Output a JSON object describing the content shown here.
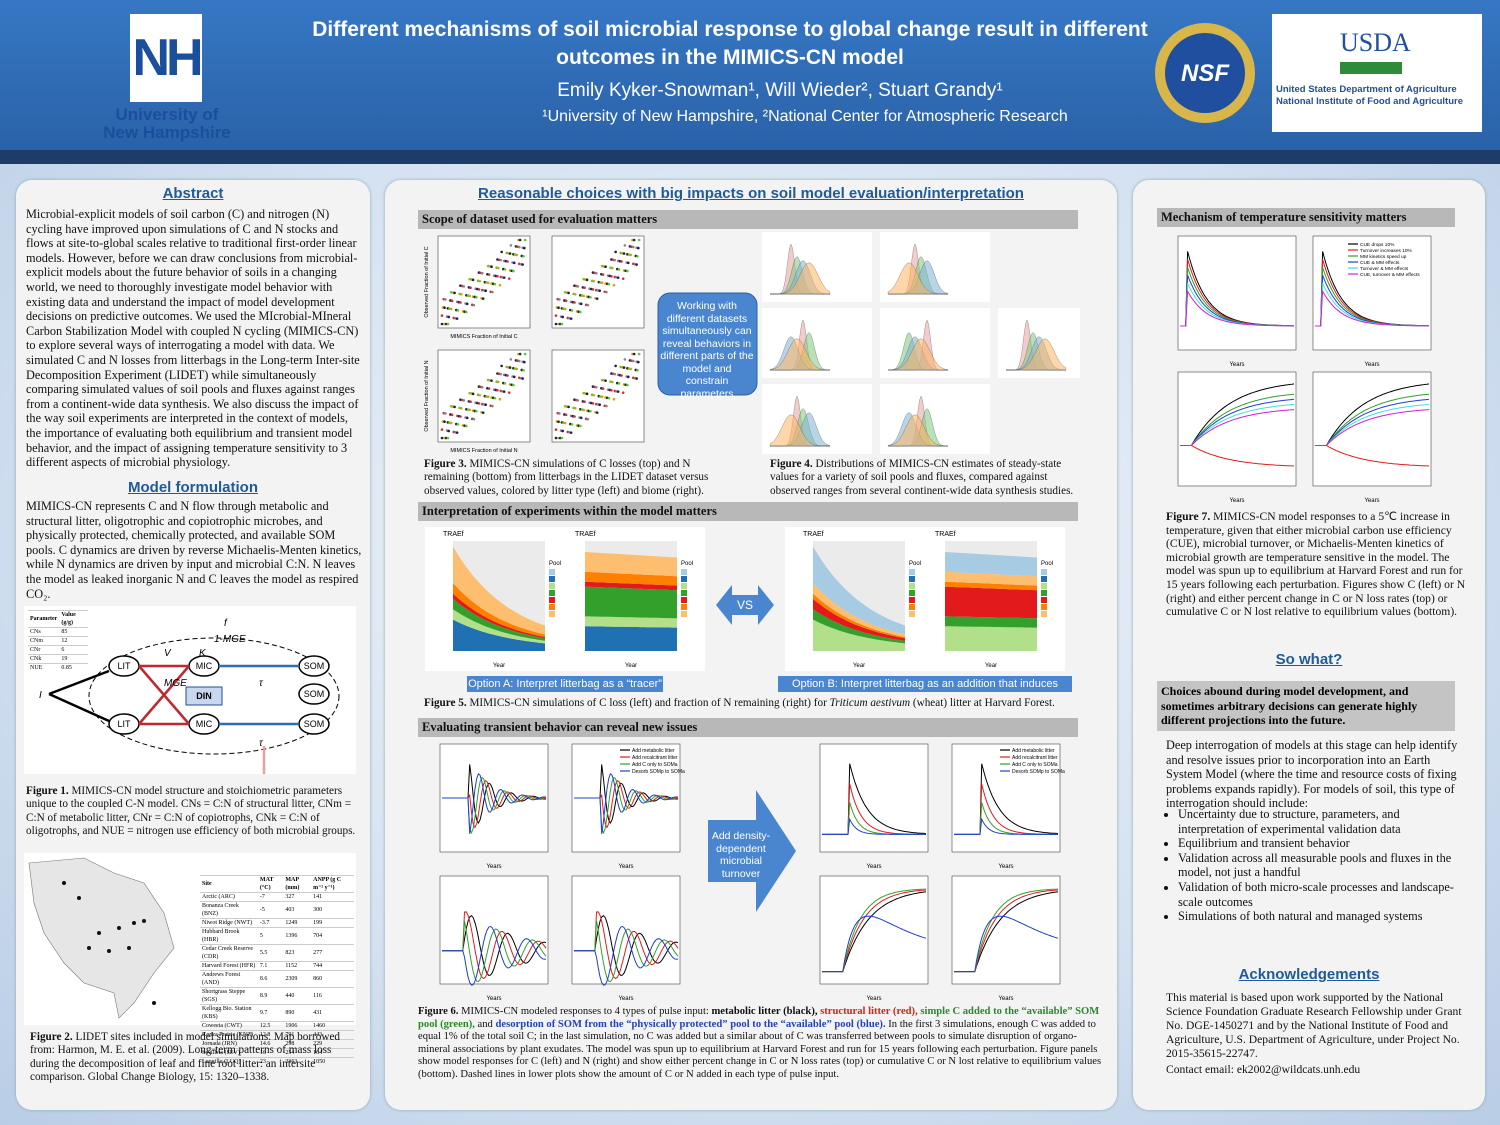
{
  "header": {
    "title": "Different mechanisms of soil microbial response to global change result in different outcomes in the MIMICS-CN model",
    "authors": "Emily Kyker-Snowman¹, Will Wieder², Stuart Grandy¹",
    "affiliations": "¹University of New Hampshire, ²National Center for Atmospheric Research",
    "unh_logo": "NH",
    "unh_name": [
      "University of",
      "New Hampshire"
    ],
    "nsf_logo": "NSF",
    "usda_logo": "USDA",
    "usda_name": [
      "United States Department of Agriculture",
      "National Institute of Food and Agriculture"
    ]
  },
  "left": {
    "abstract_heading": "Abstract",
    "abstract": "Microbial-explicit models of soil carbon (C) and nitrogen (N) cycling have improved upon simulations of C and N stocks and flows at site-to-global scales relative to traditional first-order linear models. However, before we can draw conclusions from microbial-explicit models about the future behavior of soils in a changing world, we need to thoroughly investigate model behavior with existing data and understand the impact of model development decisions on predictive outcomes. We used the MIcrobial-MIneral Carbon Stabilization Model with coupled N cycling (MIMICS-CN) to explore several ways of interrogating a model with data. We simulated C and N losses from litterbags in the Long-term Inter-site Decomposition Experiment (LIDET) while simultaneously comparing simulated values of soil pools and fluxes against ranges from a continent-wide data synthesis. We also discuss the impact of the way soil experiments are interpreted in the context of models, the importance of evaluating both equilibrium and transient model behavior, and the impact of assigning temperature sensitivity to 3 different aspects of microbial physiology.",
    "model_heading": "Model formulation",
    "model_text": "MIMICS-CN represents C and N flow through metabolic and structural litter, oligotrophic and copiotrophic microbes, and physically protected, chemically protected, and available SOM pools. C dynamics are driven by reverse Michaelis-Menten kinetics, while N dynamics are driven by input and microbial C:N. N leaves the model as leaked inorganic N and C leaves the model as respired CO₂.",
    "param_table": {
      "header": [
        "Parameter",
        "Value (g/g)"
      ],
      "rows": [
        [
          "CNs",
          "85"
        ],
        [
          "CNm",
          "12"
        ],
        [
          "CNr",
          "6"
        ],
        [
          "CNk",
          "19"
        ],
        [
          "NUE",
          "0.85"
        ]
      ]
    },
    "diagram": {
      "nodes": [
        "LIT",
        "LIT",
        "MIC",
        "MIC",
        "DIN",
        "SOM",
        "SOM",
        "SOM"
      ],
      "labels": [
        "f",
        "1-MGE",
        "MGE",
        "V",
        "K",
        "τ",
        "τ",
        "I"
      ]
    },
    "figure1_label": "Figure 1.",
    "figure1_caption": " MIMICS-CN model structure and stoichiometric parameters unique to the coupled C-N model. CNs = C:N of structural litter, CNm = C:N of metabolic litter, CNr = C:N of copiotrophs, CNk = C:N of oligotrophs, and NUE = nitrogen use efficiency of both microbial groups.",
    "site_table": {
      "header": [
        "Site",
        "MAT (°C)",
        "MAP (mm)",
        "ANPP (g C m⁻² y⁻¹)"
      ],
      "rows": [
        [
          "Arctic (ARC)",
          "-7",
          "327",
          "141"
        ],
        [
          "Bonanza Creek (BNZ)",
          "-5",
          "403",
          "300"
        ],
        [
          "Niwot Ridge (NWT)",
          "-3.7",
          "1249",
          "199"
        ],
        [
          "Hubbard Brook (HBR)",
          "5",
          "1396",
          "704"
        ],
        [
          "Cedar Creek Reserve (CDR)",
          "5.5",
          "823",
          "277"
        ],
        [
          "Harvard Forest (HFR)",
          "7.1",
          "1152",
          "744"
        ],
        [
          "Andrews Forest (AND)",
          "8.6",
          "2309",
          "860"
        ],
        [
          "Shortgrass Steppe (SGS)",
          "8.9",
          "440",
          "116"
        ],
        [
          "Kellogg Bio. Station (KBS)",
          "9.7",
          "890",
          "431"
        ],
        [
          "Coweeta (CWT)",
          "12.5",
          "1906",
          "1460"
        ],
        [
          "Konza Prairie (KNZ)",
          "12.8",
          "791",
          "443"
        ],
        [
          "Jornada (JRN)",
          "14.6",
          "298",
          "229"
        ],
        [
          "Sevilleta (SEV)",
          "16",
          "254",
          "164"
        ],
        [
          "Luquillo (LUQ)",
          "23",
          "3363",
          "1050"
        ]
      ]
    },
    "figure2_label": "Figure 2.",
    "figure2_caption": " LIDET sites included in model simulations. Map borrowed from: Harmon, M. E. et al. (2009). Long-term patterns of mass loss during the decomposition of leaf and fine root litter: an intersite comparison. Global Change Biology, 15: 1320–1338."
  },
  "middle": {
    "heading": "Reasonable choices with big impacts on soil model evaluation/interpretation",
    "section1": "Scope of dataset used for evaluation matters",
    "fig3_axes": [
      "MIMICS Fraction of Initial C",
      "Observed Fraction of Initial C",
      "MIMICS Fraction of Initial N",
      "Observed Fraction of Initial N"
    ],
    "arrow1": "Working with different datasets simultaneously can reveal behaviors in different parts of the model and constrain parameters",
    "figure3_label": "Figure 3.",
    "figure3_caption": " MIMICS-CN simulations of C losses (top) and N remaining (bottom) from litterbags in the LIDET dataset versus observed values, colored by litter type (left) and biome (right).",
    "figure4_label": "Figure 4.",
    "figure4_caption": " Distributions of MIMICS-CN estimates of steady-state values for a variety of soil pools and fluxes, compared against observed ranges from several continent-wide data synthesis studies.",
    "section2": "Interpretation of experiments within the model matters",
    "fig5_panel": "TRAEf",
    "fig5_legend_title": "Pool",
    "fig5_axis_x": "Year",
    "vs": "VS",
    "option_a": "Option A: Interpret litterbag as a “tracer”",
    "option_b": "Option B: Interpret litterbag as an addition that induces feedbacks",
    "figure5_label": "Figure 5.",
    "figure5_caption_a": " MIMICS-CN simulations of C loss (left) and fraction of N remaining (right) for ",
    "figure5_species": "Triticum aestivum",
    "figure5_caption_b": " (wheat) litter at Harvard Forest.",
    "section3": "Evaluating transient behavior can reveal new issues",
    "fig6_legend": [
      "Add metabolic litter",
      "Add recalcitrant litter",
      "Add C only to SOMa",
      "Desorb SOMp to SOMa"
    ],
    "fig6_axis_x": "Years",
    "arrow2": "Add density-dependent microbial turnover",
    "figure6_label": "Figure 6.",
    "figure6_intro": " MIMICS-CN modeled responses to 4 types of pulse input: ",
    "figure6_black": "metabolic litter (black), ",
    "figure6_red": "structural litter (red), ",
    "figure6_green": "simple C added to the “available” SOM pool (green), ",
    "figure6_and": "and ",
    "figure6_blue": "desorption of SOM from the “physically protected” pool to the “available” pool (blue).",
    "figure6_rest": " In the first 3 simulations, enough C was added to equal 1% of the total soil C; in the last simulation, no C was added but a similar about of C was transferred between pools to simulate disruption of organo-mineral associations by plant exudates. The model was spun up to equilibrium at Harvard Forest and run for 15 years following each perturbation. Figure panels show model responses for C (left) and N (right) and show either percent change in C or N loss rates (top) or cumulative C or N lost relative to equilibrium values (bottom). Dashed lines in lower plots show the amount of C or N added in each type of pulse input."
  },
  "right": {
    "section": "Mechanism of temperature sensitivity matters",
    "fig7_legend": [
      "CUE drops 10%",
      "Turnover increases 10%",
      "MM kinetics speed up",
      "CUE & MM effects",
      "Turnover & MM effects",
      "CUE, turnover & MM effects"
    ],
    "fig7_axis_x": "Years",
    "figure7_label": "Figure 7.",
    "figure7_caption": " MIMICS-CN model responses to a 5℃ increase in temperature, given that either microbial carbon use efficiency (CUE), microbial turnover, or Michaelis-Menten kinetics of microbial growth are temperature sensitive in the model. The model was spun up to equilibrium at Harvard Forest and run for 15 years following each perturbation. Figures show C (left) or N (right) and either percent change in C or N loss rates (top) or cumulative C or N lost relative to equilibrium values (bottom).",
    "so_what_heading": "So what?",
    "so_what_box": "Choices abound during model development, and sometimes arbitrary decisions can generate highly different projections into the future.",
    "so_what_text": "Deep interrogation of models at this stage can help identify and resolve issues prior to incorporation into an Earth System Model (where the time and resource costs of fixing problems expands rapidly). For models of soil, this type of interrogation should include:",
    "bullets": [
      "Uncertainty due to structure, parameters, and interpretation of experimental validation data",
      "Equilibrium and transient behavior",
      "Validation across all measurable pools and fluxes in the model, not just a handful",
      "Validation of both micro-scale processes and landscape-scale outcomes",
      "Simulations of both natural and managed systems"
    ],
    "ack_heading": "Acknowledgements",
    "ack_text": "This material is based upon work supported by the National Science Foundation Graduate Research Fellowship under Grant No. DGE-1450271 and by the National Institute of Food and Agriculture, U.S. Department of Agriculture, under Project No. 2015-35615-22747.",
    "contact": "Contact email: ek2002@wildcats.unh.edu"
  }
}
